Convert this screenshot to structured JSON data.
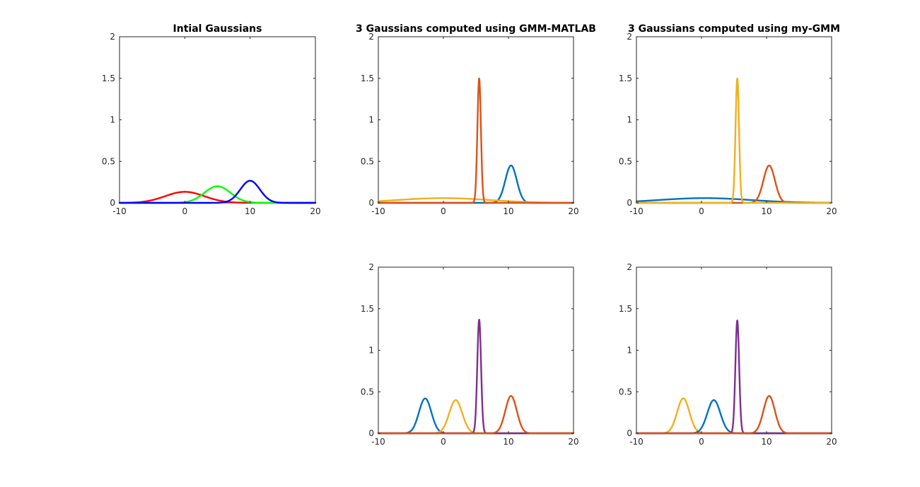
{
  "chart_data": [
    {
      "type": "line",
      "title": "Intial Gaussians",
      "xlabel": "",
      "ylabel": "",
      "xlim": [
        -10,
        20
      ],
      "ylim": [
        0,
        2
      ],
      "xticks": [
        "-10",
        "0",
        "10",
        "20"
      ],
      "yticks": [
        "0",
        "0.5",
        "1",
        "1.5",
        "2"
      ],
      "grid": false,
      "legend": "none",
      "series": [
        {
          "color": "#ff0000",
          "curve": "gaussian",
          "mean": 0,
          "std": 3.0,
          "peak": 0.133
        },
        {
          "color": "#00ff00",
          "curve": "gaussian",
          "mean": 5,
          "std": 2.0,
          "peak": 0.2
        },
        {
          "color": "#0000ff",
          "curve": "gaussian",
          "mean": 10,
          "std": 1.5,
          "peak": 0.266
        }
      ]
    },
    {
      "type": "line",
      "title": "3 Gaussians computed using GMM-MATLAB",
      "xlabel": "",
      "ylabel": "",
      "xlim": [
        -10,
        20
      ],
      "ylim": [
        0,
        2
      ],
      "xticks": [
        "-10",
        "0",
        "10",
        "20"
      ],
      "yticks": [
        "0",
        "0.5",
        "1",
        "1.5",
        "2"
      ],
      "grid": false,
      "legend": "none",
      "series": [
        {
          "color": "#0072bd",
          "curve": "gaussian",
          "mean": 10.4,
          "std": 0.88,
          "peak": 0.45
        },
        {
          "color": "#edb120",
          "curve": "gaussian",
          "mean": 0,
          "std": 7.0,
          "peak": 0.057
        },
        {
          "color": "#d95319",
          "curve": "gaussian",
          "mean": 5.5,
          "std": 0.27,
          "peak": 1.5
        }
      ]
    },
    {
      "type": "line",
      "title": "3 Gaussians computed using my-GMM",
      "xlabel": "",
      "ylabel": "",
      "xlim": [
        -10,
        20
      ],
      "ylim": [
        0,
        2
      ],
      "xticks": [
        "-10",
        "0",
        "10",
        "20"
      ],
      "yticks": [
        "0",
        "0.5",
        "1",
        "1.5",
        "2"
      ],
      "grid": false,
      "legend": "none",
      "series": [
        {
          "color": "#0072bd",
          "curve": "gaussian",
          "mean": 0.5,
          "std": 7.0,
          "peak": 0.057
        },
        {
          "color": "#d95319",
          "curve": "gaussian",
          "mean": 10.4,
          "std": 0.88,
          "peak": 0.45
        },
        {
          "color": "#edb120",
          "curve": "gaussian",
          "mean": 5.5,
          "std": 0.27,
          "peak": 1.5
        }
      ]
    },
    {
      "type": "line",
      "title": "",
      "xlabel": "",
      "ylabel": "",
      "xlim": [
        -10,
        20
      ],
      "ylim": [
        0,
        2
      ],
      "xticks": [
        "-10",
        "0",
        "10",
        "20"
      ],
      "yticks": [
        "0",
        "0.5",
        "1",
        "1.5",
        "2"
      ],
      "grid": false,
      "legend": "none",
      "series": [
        {
          "color": "#0072bd",
          "curve": "gaussian",
          "mean": -2.8,
          "std": 0.95,
          "peak": 0.42
        },
        {
          "color": "#edb120",
          "curve": "gaussian",
          "mean": 1.9,
          "std": 1.0,
          "peak": 0.4
        },
        {
          "color": "#7e2f8e",
          "curve": "gaussian",
          "mean": 5.5,
          "std": 0.29,
          "peak": 1.37
        },
        {
          "color": "#d95319",
          "curve": "gaussian",
          "mean": 10.4,
          "std": 0.88,
          "peak": 0.45
        }
      ]
    },
    {
      "type": "line",
      "title": "",
      "xlabel": "",
      "ylabel": "",
      "xlim": [
        -10,
        20
      ],
      "ylim": [
        0,
        2
      ],
      "xticks": [
        "-10",
        "0",
        "10",
        "20"
      ],
      "yticks": [
        "0",
        "0.5",
        "1",
        "1.5",
        "2"
      ],
      "grid": false,
      "legend": "none",
      "series": [
        {
          "color": "#edb120",
          "curve": "gaussian",
          "mean": -2.8,
          "std": 0.95,
          "peak": 0.42
        },
        {
          "color": "#0072bd",
          "curve": "gaussian",
          "mean": 1.9,
          "std": 1.0,
          "peak": 0.4
        },
        {
          "color": "#7e2f8e",
          "curve": "gaussian",
          "mean": 5.5,
          "std": 0.29,
          "peak": 1.36
        },
        {
          "color": "#d95319",
          "curve": "gaussian",
          "mean": 10.4,
          "std": 0.88,
          "peak": 0.45
        }
      ]
    }
  ]
}
